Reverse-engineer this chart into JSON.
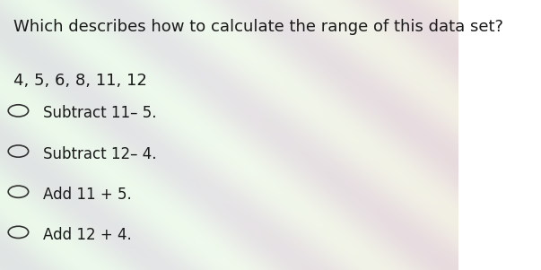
{
  "question": "Which describes how to calculate the range of this data set?",
  "dataset": "4, 5, 6, 8, 11, 12",
  "options": [
    "Subtract 11– 5.",
    "Subtract 12– 4.",
    "Add 11 + 5.",
    "Add 12 + 4."
  ],
  "bg_color_top": "#d4e8d0",
  "bg_color_right": "#f4c8c0",
  "question_fontsize": 13,
  "dataset_fontsize": 13,
  "option_fontsize": 12,
  "text_color": "#1a1a1a"
}
